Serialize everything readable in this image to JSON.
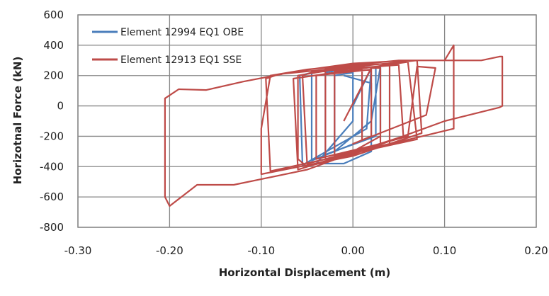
{
  "chart_data": {
    "type": "line",
    "title": "",
    "xlabel": "Horizontal Displacement (m)",
    "ylabel": "Horizotnal Force (kN)",
    "xlim": [
      -0.3,
      0.2
    ],
    "ylim": [
      -800,
      600
    ],
    "xticks": [
      -0.3,
      -0.2,
      -0.1,
      0.0,
      0.1,
      0.2
    ],
    "xtick_labels": [
      "-0.30",
      "-0.20",
      "-0.10",
      "0.00",
      "0.10",
      "0.20"
    ],
    "yticks": [
      -800,
      -600,
      -400,
      -200,
      0,
      200,
      400,
      600
    ],
    "ytick_labels": [
      "-800",
      "-600",
      "-400",
      "-200",
      "0",
      "200",
      "400",
      "600"
    ],
    "grid": true,
    "legend_position": "top-left",
    "series": [
      {
        "name": "Element 12994 EQ1 OBE",
        "color": "#4a7ebb",
        "points": [
          [
            0.0,
            0
          ],
          [
            0.02,
            250
          ],
          [
            0.025,
            250
          ],
          [
            0.025,
            -200
          ],
          [
            -0.03,
            -320
          ],
          [
            -0.03,
            220
          ],
          [
            0.0,
            250
          ],
          [
            0.03,
            260
          ],
          [
            0.03,
            -180
          ],
          [
            -0.045,
            -360
          ],
          [
            -0.045,
            230
          ],
          [
            0.02,
            255
          ],
          [
            0.015,
            -150
          ],
          [
            -0.055,
            -390
          ],
          [
            -0.058,
            200
          ],
          [
            -0.03,
            240
          ],
          [
            0.03,
            260
          ],
          [
            0.02,
            -100
          ],
          [
            -0.02,
            -300
          ],
          [
            -0.02,
            200
          ],
          [
            0.0,
            220
          ],
          [
            0.0,
            -100
          ],
          [
            -0.04,
            -380
          ],
          [
            -0.01,
            -380
          ],
          [
            0.02,
            -300
          ],
          [
            0.02,
            150
          ],
          [
            -0.01,
            200
          ]
        ]
      },
      {
        "name": "Element 12913 EQ1 SSE",
        "color": "#be4b48",
        "points": [
          [
            -0.01,
            -100
          ],
          [
            0.02,
            250
          ],
          [
            0.03,
            250
          ],
          [
            0.03,
            -200
          ],
          [
            0.0,
            -300
          ],
          [
            -0.03,
            -350
          ],
          [
            -0.03,
            250
          ],
          [
            -0.01,
            260
          ],
          [
            0.04,
            280
          ],
          [
            0.04,
            -250
          ],
          [
            -0.05,
            -380
          ],
          [
            -0.055,
            200
          ],
          [
            -0.04,
            230
          ],
          [
            0.05,
            270
          ],
          [
            0.055,
            -200
          ],
          [
            -0.06,
            -420
          ],
          [
            -0.065,
            180
          ],
          [
            0.06,
            290
          ],
          [
            0.07,
            -220
          ],
          [
            -0.09,
            -430
          ],
          [
            -0.095,
            180
          ],
          [
            -0.08,
            210
          ],
          [
            0.07,
            300
          ],
          [
            0.075,
            -180
          ],
          [
            0.0,
            -330
          ],
          [
            -0.1,
            -450
          ],
          [
            -0.1,
            -150
          ],
          [
            -0.09,
            200
          ],
          [
            -0.05,
            240
          ],
          [
            0.05,
            300
          ],
          [
            0.1,
            300
          ],
          [
            0.11,
            400
          ],
          [
            0.11,
            -150
          ],
          [
            0.0,
            -310
          ],
          [
            -0.05,
            -420
          ],
          [
            -0.13,
            -520
          ],
          [
            -0.17,
            -520
          ],
          [
            -0.2,
            -660
          ],
          [
            -0.205,
            -600
          ],
          [
            -0.205,
            50
          ],
          [
            -0.19,
            110
          ],
          [
            -0.16,
            105
          ],
          [
            -0.12,
            160
          ],
          [
            -0.06,
            230
          ],
          [
            0.0,
            280
          ],
          [
            0.06,
            300
          ],
          [
            0.12,
            300
          ],
          [
            0.14,
            300
          ],
          [
            0.16,
            325
          ],
          [
            0.163,
            325
          ],
          [
            0.163,
            0
          ],
          [
            0.16,
            -10
          ],
          [
            0.1,
            -100
          ],
          [
            0.0,
            -320
          ],
          [
            -0.05,
            -400
          ],
          [
            -0.06,
            -350
          ],
          [
            -0.06,
            200
          ],
          [
            0.0,
            260
          ],
          [
            0.03,
            250
          ],
          [
            0.03,
            -250
          ],
          [
            -0.04,
            -350
          ],
          [
            -0.04,
            200
          ],
          [
            0.02,
            240
          ],
          [
            0.02,
            -200
          ],
          [
            0.0,
            -250
          ],
          [
            0.08,
            -60
          ],
          [
            0.09,
            250
          ],
          [
            0.07,
            260
          ],
          [
            0.06,
            -200
          ],
          [
            -0.02,
            -330
          ],
          [
            -0.02,
            230
          ],
          [
            0.01,
            240
          ],
          [
            0.01,
            -220
          ]
        ]
      }
    ]
  }
}
